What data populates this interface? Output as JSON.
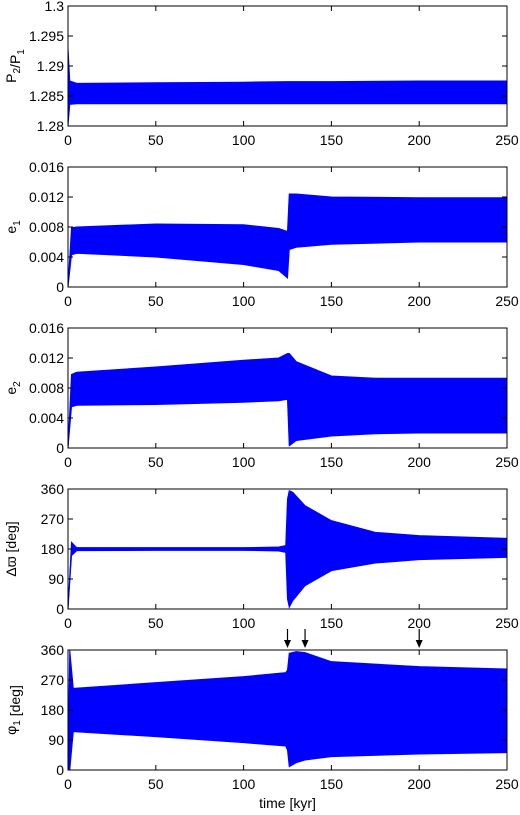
{
  "chart_data": [
    {
      "type": "area",
      "ylabel": "P2/P1",
      "ylabel_parts": [
        {
          "text": "P",
          "sub": "2"
        },
        {
          "text": "/P",
          "sub": "1"
        }
      ],
      "xlim": [
        0,
        250
      ],
      "ylim": [
        1.28,
        1.3
      ],
      "yticks": [
        "1.28",
        "1.285",
        "1.29",
        "1.295",
        "1.3"
      ],
      "xticks": [
        "0",
        "50",
        "100",
        "150",
        "200",
        "250"
      ],
      "color": "#0000ff",
      "band_x": [
        0,
        1,
        5,
        50,
        100,
        125,
        150,
        200,
        250
      ],
      "band_low": [
        1.28,
        1.2836,
        1.2837,
        1.2837,
        1.2837,
        1.2837,
        1.2837,
        1.2837,
        1.2837
      ],
      "band_high": [
        1.293,
        1.2875,
        1.2871,
        1.2872,
        1.2873,
        1.2874,
        1.2874,
        1.2875,
        1.2875
      ]
    },
    {
      "type": "area",
      "ylabel": "e1",
      "ylabel_parts": [
        {
          "text": "e",
          "sub": "1"
        }
      ],
      "xlim": [
        0,
        250
      ],
      "ylim": [
        0,
        0.016
      ],
      "yticks": [
        "0",
        "0.004",
        "0.008",
        "0.012",
        "0.016"
      ],
      "xticks": [
        "0",
        "50",
        "100",
        "150",
        "200",
        "250"
      ],
      "color": "#0000ff",
      "band_x": [
        0,
        2,
        5,
        50,
        100,
        120,
        125,
        126,
        130,
        150,
        200,
        250
      ],
      "band_low": [
        0,
        0.0043,
        0.0045,
        0.004,
        0.003,
        0.0022,
        0.0012,
        0.005,
        0.0053,
        0.0057,
        0.006,
        0.006
      ],
      "band_high": [
        0,
        0.0079,
        0.008,
        0.0084,
        0.0083,
        0.0078,
        0.0074,
        0.0124,
        0.0124,
        0.012,
        0.0119,
        0.0119
      ]
    },
    {
      "type": "area",
      "ylabel": "e2",
      "ylabel_parts": [
        {
          "text": "e",
          "sub": "2"
        }
      ],
      "xlim": [
        0,
        250
      ],
      "ylim": [
        0,
        0.016
      ],
      "yticks": [
        "0",
        "0.004",
        "0.008",
        "0.012",
        "0.016"
      ],
      "xticks": [
        "0",
        "50",
        "100",
        "150",
        "200",
        "250"
      ],
      "color": "#0000ff",
      "band_x": [
        0,
        2,
        5,
        50,
        100,
        120,
        125,
        126,
        130,
        150,
        175,
        200,
        250
      ],
      "band_low": [
        0,
        0.0055,
        0.0057,
        0.0058,
        0.0061,
        0.0063,
        0.0065,
        0.0003,
        0.001,
        0.0016,
        0.0019,
        0.002,
        0.002
      ],
      "band_high": [
        0,
        0.0098,
        0.0101,
        0.0108,
        0.0117,
        0.012,
        0.0126,
        0.0126,
        0.0115,
        0.0096,
        0.0093,
        0.0093,
        0.0093
      ]
    },
    {
      "type": "area",
      "ylabel": "Δϖ [deg]",
      "ylabel_parts": [
        {
          "text": "Δϖ [deg]",
          "sub": ""
        }
      ],
      "xlim": [
        0,
        250
      ],
      "ylim": [
        0,
        360
      ],
      "yticks": [
        "0",
        "90",
        "180",
        "270",
        "360"
      ],
      "xticks": [
        "0",
        "50",
        "100",
        "150",
        "200",
        "250"
      ],
      "color": "#0000ff",
      "band_x": [
        0,
        2,
        5,
        50,
        100,
        120,
        124,
        125,
        126,
        128,
        135,
        150,
        175,
        200,
        250
      ],
      "band_low": [
        0,
        160,
        175,
        176,
        176,
        174,
        170,
        30,
        5,
        25,
        70,
        115,
        138,
        148,
        155
      ],
      "band_high": [
        0,
        200,
        184,
        184,
        184,
        186,
        190,
        330,
        355,
        350,
        310,
        265,
        230,
        220,
        212
      ]
    },
    {
      "type": "area",
      "ylabel": "φ1 [deg]",
      "ylabel_parts": [
        {
          "text": "φ",
          "sub": "1"
        },
        {
          "text": " [deg]",
          "sub": ""
        }
      ],
      "xlim": [
        0,
        250
      ],
      "ylim": [
        0,
        360
      ],
      "yticks": [
        "0",
        "90",
        "180",
        "270",
        "360"
      ],
      "xticks": [
        "0",
        "50",
        "100",
        "150",
        "200",
        "250"
      ],
      "xlabel": "time [kyr]",
      "color": "#0000ff",
      "band_x": [
        0,
        1,
        3,
        50,
        100,
        124,
        125,
        126,
        130,
        135,
        150,
        200,
        250
      ],
      "band_low": [
        0,
        0,
        115,
        100,
        82,
        72,
        60,
        10,
        22,
        30,
        40,
        48,
        52
      ],
      "band_high": [
        0,
        360,
        245,
        262,
        280,
        292,
        300,
        350,
        355,
        352,
        325,
        310,
        303
      ],
      "arrows_x": [
        125,
        135,
        200
      ]
    }
  ]
}
